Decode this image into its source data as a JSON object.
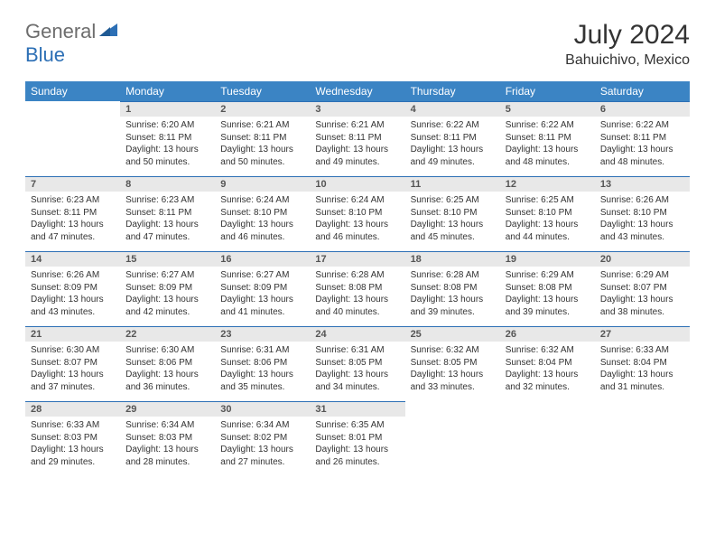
{
  "logo": {
    "part1": "General",
    "part2": "Blue"
  },
  "title": "July 2024",
  "location": "Bahuichivo, Mexico",
  "dayNames": [
    "Sunday",
    "Monday",
    "Tuesday",
    "Wednesday",
    "Thursday",
    "Friday",
    "Saturday"
  ],
  "colors": {
    "headerBg": "#3b84c4",
    "headerText": "#ffffff",
    "dayNumBg": "#e8e8e8",
    "borderTop": "#2c6fb5",
    "logoGray": "#6d6d6d",
    "logoBlue": "#2c6fb5"
  },
  "startWeekday": 1,
  "days": [
    {
      "n": 1,
      "sr": "6:20 AM",
      "ss": "8:11 PM",
      "dl": "13 hours and 50 minutes."
    },
    {
      "n": 2,
      "sr": "6:21 AM",
      "ss": "8:11 PM",
      "dl": "13 hours and 50 minutes."
    },
    {
      "n": 3,
      "sr": "6:21 AM",
      "ss": "8:11 PM",
      "dl": "13 hours and 49 minutes."
    },
    {
      "n": 4,
      "sr": "6:22 AM",
      "ss": "8:11 PM",
      "dl": "13 hours and 49 minutes."
    },
    {
      "n": 5,
      "sr": "6:22 AM",
      "ss": "8:11 PM",
      "dl": "13 hours and 48 minutes."
    },
    {
      "n": 6,
      "sr": "6:22 AM",
      "ss": "8:11 PM",
      "dl": "13 hours and 48 minutes."
    },
    {
      "n": 7,
      "sr": "6:23 AM",
      "ss": "8:11 PM",
      "dl": "13 hours and 47 minutes."
    },
    {
      "n": 8,
      "sr": "6:23 AM",
      "ss": "8:11 PM",
      "dl": "13 hours and 47 minutes."
    },
    {
      "n": 9,
      "sr": "6:24 AM",
      "ss": "8:10 PM",
      "dl": "13 hours and 46 minutes."
    },
    {
      "n": 10,
      "sr": "6:24 AM",
      "ss": "8:10 PM",
      "dl": "13 hours and 46 minutes."
    },
    {
      "n": 11,
      "sr": "6:25 AM",
      "ss": "8:10 PM",
      "dl": "13 hours and 45 minutes."
    },
    {
      "n": 12,
      "sr": "6:25 AM",
      "ss": "8:10 PM",
      "dl": "13 hours and 44 minutes."
    },
    {
      "n": 13,
      "sr": "6:26 AM",
      "ss": "8:10 PM",
      "dl": "13 hours and 43 minutes."
    },
    {
      "n": 14,
      "sr": "6:26 AM",
      "ss": "8:09 PM",
      "dl": "13 hours and 43 minutes."
    },
    {
      "n": 15,
      "sr": "6:27 AM",
      "ss": "8:09 PM",
      "dl": "13 hours and 42 minutes."
    },
    {
      "n": 16,
      "sr": "6:27 AM",
      "ss": "8:09 PM",
      "dl": "13 hours and 41 minutes."
    },
    {
      "n": 17,
      "sr": "6:28 AM",
      "ss": "8:08 PM",
      "dl": "13 hours and 40 minutes."
    },
    {
      "n": 18,
      "sr": "6:28 AM",
      "ss": "8:08 PM",
      "dl": "13 hours and 39 minutes."
    },
    {
      "n": 19,
      "sr": "6:29 AM",
      "ss": "8:08 PM",
      "dl": "13 hours and 39 minutes."
    },
    {
      "n": 20,
      "sr": "6:29 AM",
      "ss": "8:07 PM",
      "dl": "13 hours and 38 minutes."
    },
    {
      "n": 21,
      "sr": "6:30 AM",
      "ss": "8:07 PM",
      "dl": "13 hours and 37 minutes."
    },
    {
      "n": 22,
      "sr": "6:30 AM",
      "ss": "8:06 PM",
      "dl": "13 hours and 36 minutes."
    },
    {
      "n": 23,
      "sr": "6:31 AM",
      "ss": "8:06 PM",
      "dl": "13 hours and 35 minutes."
    },
    {
      "n": 24,
      "sr": "6:31 AM",
      "ss": "8:05 PM",
      "dl": "13 hours and 34 minutes."
    },
    {
      "n": 25,
      "sr": "6:32 AM",
      "ss": "8:05 PM",
      "dl": "13 hours and 33 minutes."
    },
    {
      "n": 26,
      "sr": "6:32 AM",
      "ss": "8:04 PM",
      "dl": "13 hours and 32 minutes."
    },
    {
      "n": 27,
      "sr": "6:33 AM",
      "ss": "8:04 PM",
      "dl": "13 hours and 31 minutes."
    },
    {
      "n": 28,
      "sr": "6:33 AM",
      "ss": "8:03 PM",
      "dl": "13 hours and 29 minutes."
    },
    {
      "n": 29,
      "sr": "6:34 AM",
      "ss": "8:03 PM",
      "dl": "13 hours and 28 minutes."
    },
    {
      "n": 30,
      "sr": "6:34 AM",
      "ss": "8:02 PM",
      "dl": "13 hours and 27 minutes."
    },
    {
      "n": 31,
      "sr": "6:35 AM",
      "ss": "8:01 PM",
      "dl": "13 hours and 26 minutes."
    }
  ],
  "labels": {
    "sunrise": "Sunrise:",
    "sunset": "Sunset:",
    "daylight": "Daylight:"
  }
}
